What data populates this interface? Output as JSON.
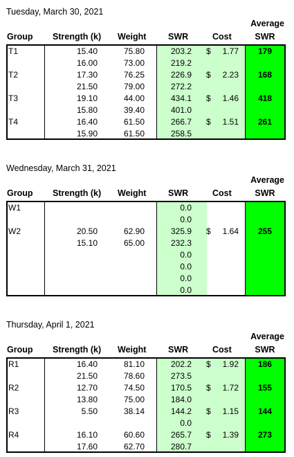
{
  "headers": {
    "group": "Group",
    "strength": "Strength (k)",
    "weight": "Weight",
    "swr": "SWR",
    "cost": "Cost",
    "avg_line1": "Average",
    "avg_line2": "SWR"
  },
  "sections": [
    {
      "date": "Tuesday, March 30, 2021",
      "rows": [
        {
          "group": "T1",
          "strength": "15.40",
          "weight": "75.80",
          "swr": "203.2",
          "cost_sign": "$",
          "cost": "1.77",
          "avg": "179"
        },
        {
          "group": "",
          "strength": "16.00",
          "weight": "73.00",
          "swr": "219.2",
          "cost_sign": "",
          "cost": "",
          "avg": ""
        },
        {
          "group": "T2",
          "strength": "17.30",
          "weight": "76.25",
          "swr": "226.9",
          "cost_sign": "$",
          "cost": "2.23",
          "avg": "168"
        },
        {
          "group": "",
          "strength": "21.50",
          "weight": "79.00",
          "swr": "272.2",
          "cost_sign": "",
          "cost": "",
          "avg": ""
        },
        {
          "group": "T3",
          "strength": "19.10",
          "weight": "44.00",
          "swr": "434.1",
          "cost_sign": "$",
          "cost": "1.46",
          "avg": "418"
        },
        {
          "group": "",
          "strength": "15.80",
          "weight": "39.40",
          "swr": "401.0",
          "cost_sign": "",
          "cost": "",
          "avg": ""
        },
        {
          "group": "T4",
          "strength": "16.40",
          "weight": "61.50",
          "swr": "266.7",
          "cost_sign": "$",
          "cost": "1.51",
          "avg": "261"
        },
        {
          "group": "",
          "strength": "15.90",
          "weight": "61.50",
          "swr": "258.5",
          "cost_sign": "",
          "cost": "",
          "avg": ""
        }
      ]
    },
    {
      "date": "Wednesday, March 31, 2021",
      "rows": [
        {
          "group": "W1",
          "strength": "",
          "weight": "",
          "swr": "0.0",
          "cost_sign": "",
          "cost": "",
          "avg": ""
        },
        {
          "group": "",
          "strength": "",
          "weight": "",
          "swr": "0.0",
          "cost_sign": "",
          "cost": "",
          "avg": ""
        },
        {
          "group": "W2",
          "strength": "20.50",
          "weight": "62.90",
          "swr": "325.9",
          "cost_sign": "$",
          "cost": "1.64",
          "avg": "255"
        },
        {
          "group": "",
          "strength": "15.10",
          "weight": "65.00",
          "swr": "232.3",
          "cost_sign": "",
          "cost": "",
          "avg": ""
        },
        {
          "group": "",
          "strength": "",
          "weight": "",
          "swr": "0.0",
          "cost_sign": "",
          "cost": "",
          "avg": ""
        },
        {
          "group": "",
          "strength": "",
          "weight": "",
          "swr": "0.0",
          "cost_sign": "",
          "cost": "",
          "avg": ""
        },
        {
          "group": "",
          "strength": "",
          "weight": "",
          "swr": "0.0",
          "cost_sign": "",
          "cost": "",
          "avg": ""
        },
        {
          "group": "",
          "strength": "",
          "weight": "",
          "swr": "0.0",
          "cost_sign": "",
          "cost": "",
          "avg": ""
        }
      ]
    },
    {
      "date": "Thursday, April 1, 2021",
      "rows": [
        {
          "group": "R1",
          "strength": "16.40",
          "weight": "81.10",
          "swr": "202.2",
          "cost_sign": "$",
          "cost": "1.92",
          "avg": "186"
        },
        {
          "group": "",
          "strength": "21.50",
          "weight": "78.60",
          "swr": "273.5",
          "cost_sign": "",
          "cost": "",
          "avg": ""
        },
        {
          "group": "R2",
          "strength": "12.70",
          "weight": "74.50",
          "swr": "170.5",
          "cost_sign": "$",
          "cost": "1.72",
          "avg": "155"
        },
        {
          "group": "",
          "strength": "13.80",
          "weight": "75.00",
          "swr": "184.0",
          "cost_sign": "",
          "cost": "",
          "avg": ""
        },
        {
          "group": "R3",
          "strength": "5.50",
          "weight": "38.14",
          "swr": "144.2",
          "cost_sign": "$",
          "cost": "1.15",
          "avg": "144"
        },
        {
          "group": "",
          "strength": "",
          "weight": "",
          "swr": "0.0",
          "cost_sign": "",
          "cost": "",
          "avg": ""
        },
        {
          "group": "R4",
          "strength": "16.10",
          "weight": "60.60",
          "swr": "265.7",
          "cost_sign": "$",
          "cost": "1.39",
          "avg": "273"
        },
        {
          "group": "",
          "strength": "17.60",
          "weight": "62.70",
          "swr": "280.7",
          "cost_sign": "",
          "cost": "",
          "avg": ""
        }
      ]
    }
  ],
  "colors": {
    "swr_fill": "#ccffcc",
    "cost_fill": "#ccffcc",
    "avg_fill": "#00ff00"
  }
}
